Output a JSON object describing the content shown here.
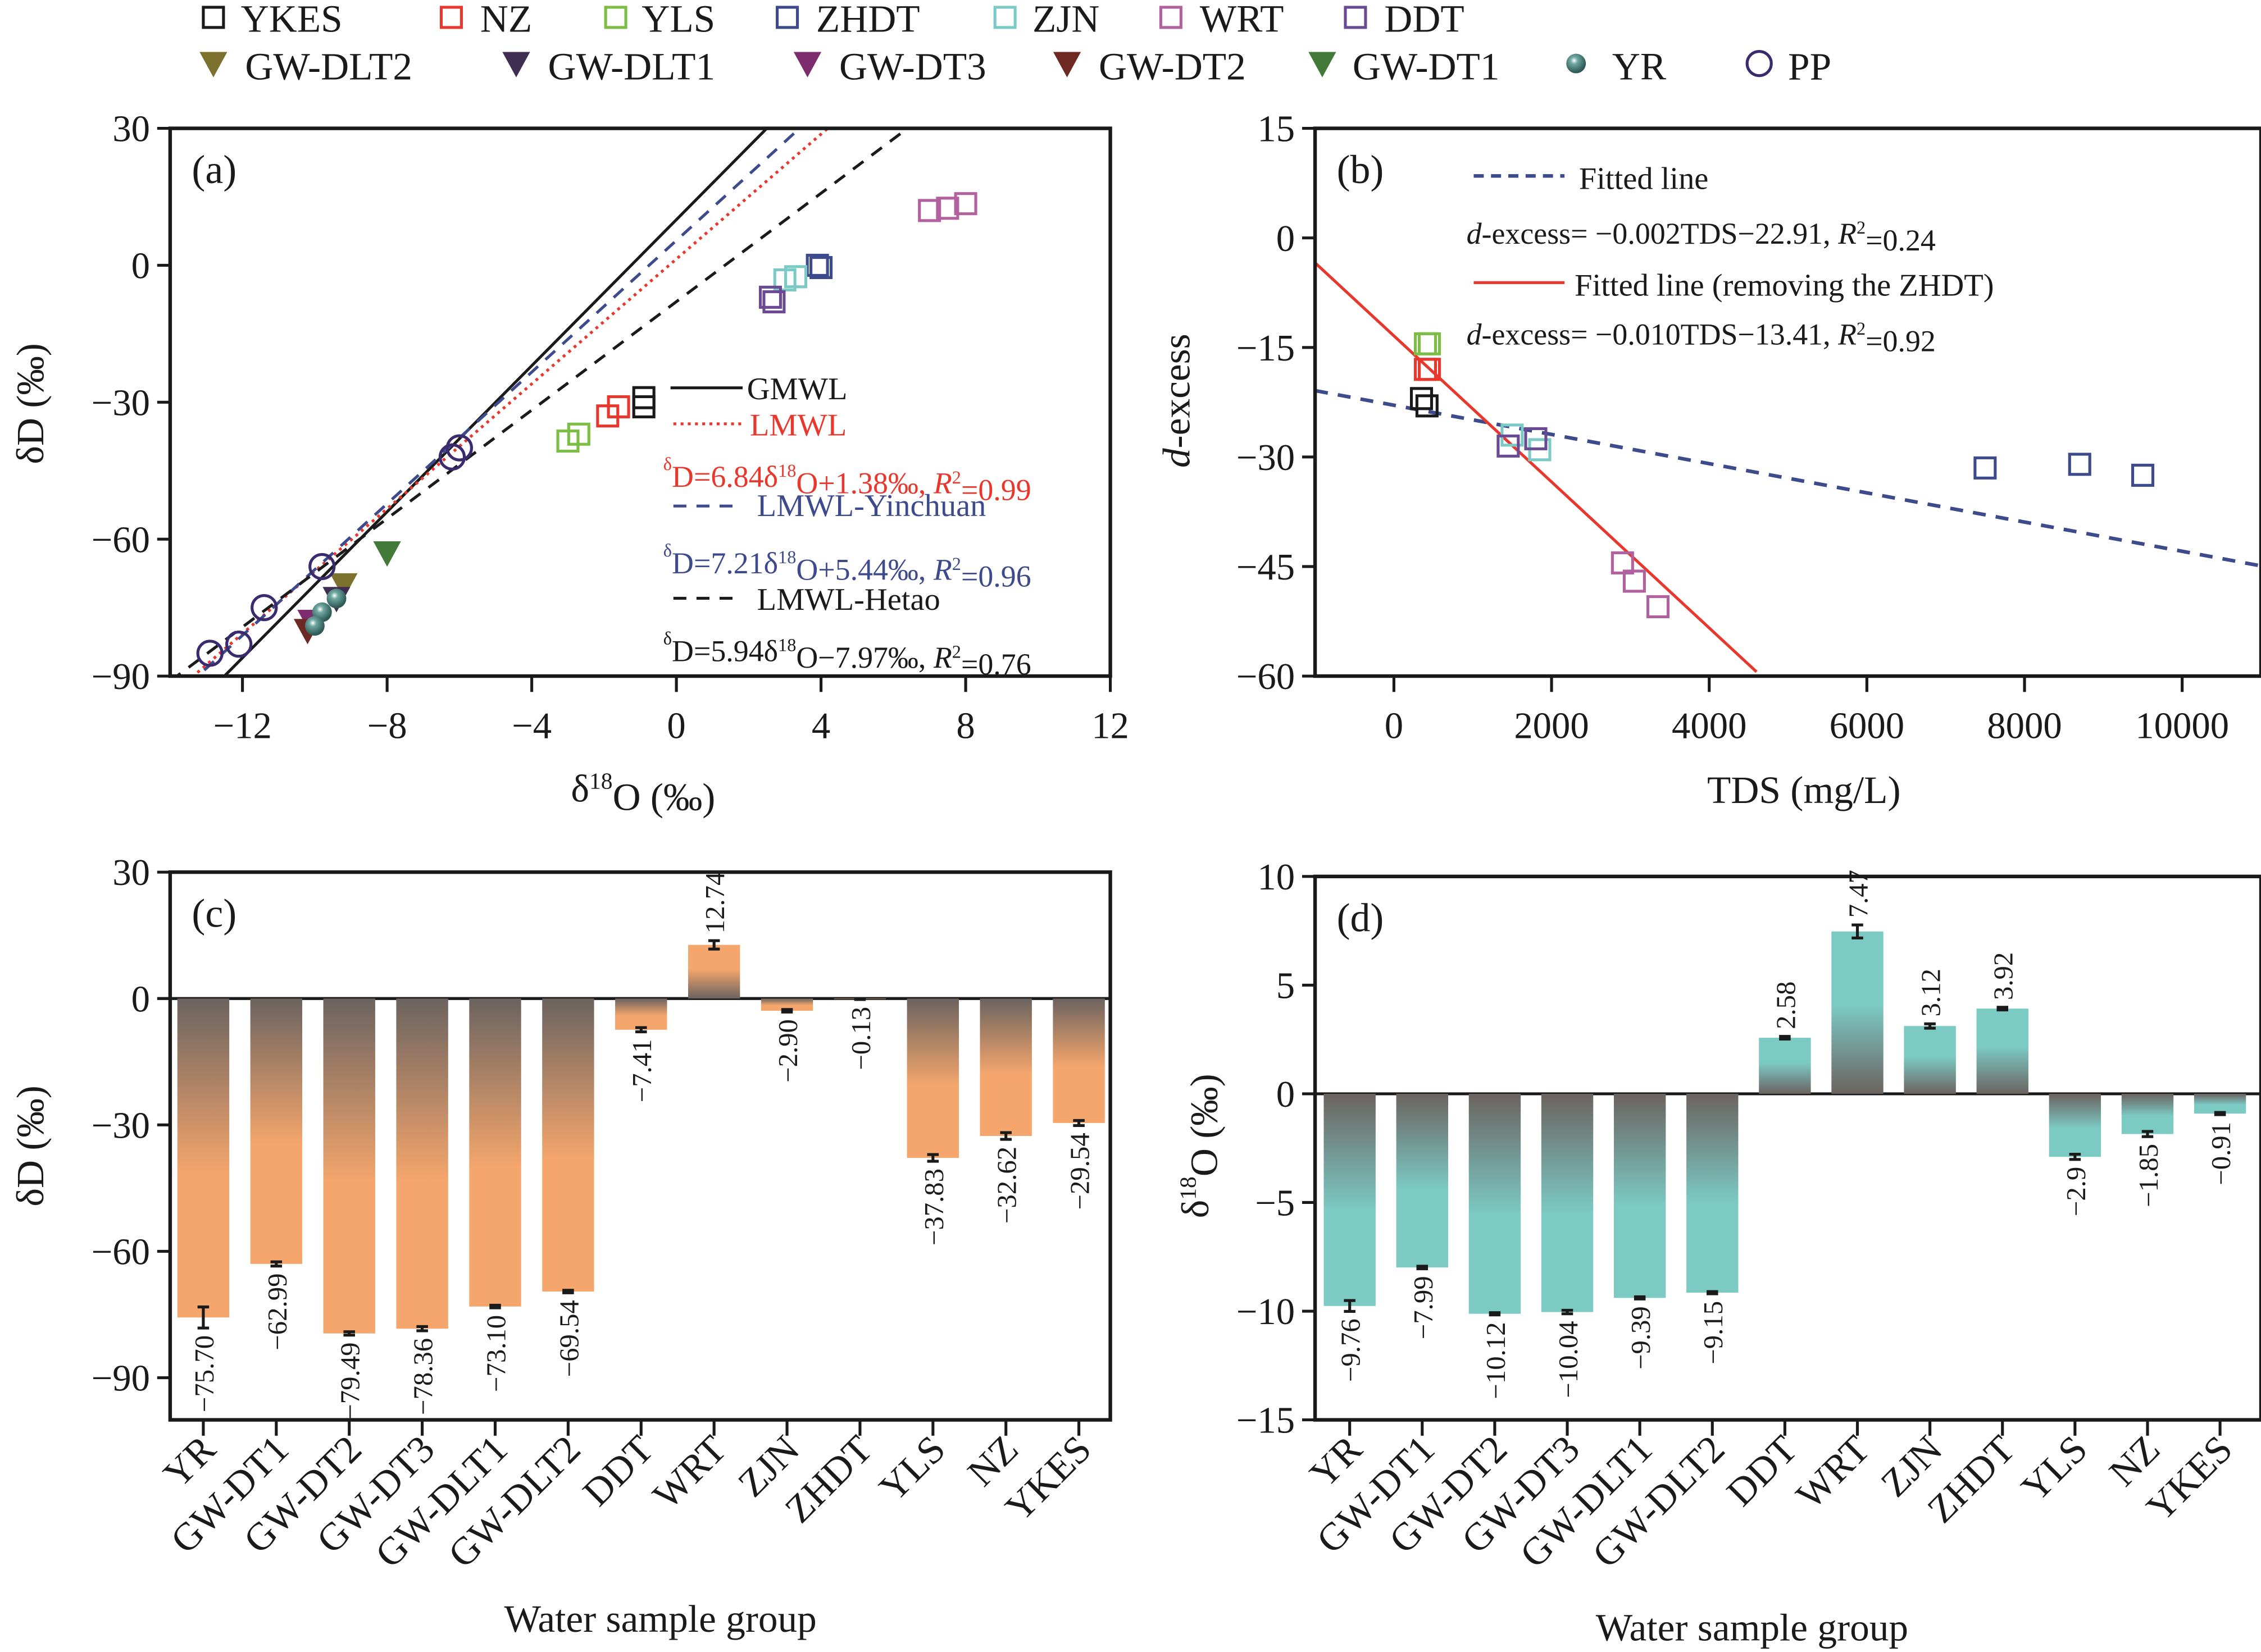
{
  "legend": {
    "row1": [
      {
        "label": "YKES",
        "marker": "square",
        "color": "#1a1a1a"
      },
      {
        "label": "NZ",
        "marker": "square",
        "color": "#e8382e"
      },
      {
        "label": "YLS",
        "marker": "square",
        "color": "#7cbd45"
      },
      {
        "label": "ZHDT",
        "marker": "square",
        "color": "#3d4a8c"
      },
      {
        "label": "ZJN",
        "marker": "square",
        "color": "#7ccac6"
      },
      {
        "label": "WRT",
        "marker": "square",
        "color": "#b0619e"
      },
      {
        "label": "DDT",
        "marker": "square",
        "color": "#6a4a93"
      }
    ],
    "row2": [
      {
        "label": "GW-DLT2",
        "marker": "triangle-down",
        "color": "#7d7130"
      },
      {
        "label": "GW-DLT1",
        "marker": "triangle-down",
        "color": "#3f2e52"
      },
      {
        "label": "GW-DT3",
        "marker": "triangle-down",
        "color": "#7d2d6e"
      },
      {
        "label": "GW-DT2",
        "marker": "triangle-down",
        "color": "#6e2a22"
      },
      {
        "label": "GW-DT1",
        "marker": "triangle-down",
        "color": "#437a3a"
      },
      {
        "label": "YR",
        "marker": "ball",
        "color": "#4e7f7a"
      },
      {
        "label": "PP",
        "marker": "circle",
        "color": "#3a2a6e"
      }
    ]
  },
  "chart_data": [
    {
      "panel": "(a)",
      "type": "scatter",
      "xlabel": {
        "pre": "δ",
        "sup": "18",
        "post": "O (‰)"
      },
      "ylabel": "δD (‰)",
      "xlim": [
        -14,
        12
      ],
      "ylim": [
        -90,
        30
      ],
      "xticks": [
        -12,
        -8,
        -4,
        0,
        4,
        8,
        12
      ],
      "xtick_labels": [
        "−12",
        "−8",
        "−4",
        "0",
        "4",
        "8",
        "12"
      ],
      "yticks": [
        30,
        0,
        -30,
        -60,
        -90
      ],
      "ytick_labels": [
        "30",
        "0",
        "−30",
        "−60",
        "−90"
      ],
      "series": [
        {
          "group": "WRT",
          "points": [
            [
              7.0,
              12
            ],
            [
              7.5,
              12.5
            ],
            [
              8.0,
              13.5
            ]
          ]
        },
        {
          "group": "ZHDT",
          "points": [
            [
              3.9,
              0
            ],
            [
              4.0,
              -0.5
            ]
          ]
        },
        {
          "group": "ZJN",
          "points": [
            [
              3.0,
              -3.2
            ],
            [
              3.3,
              -2.5
            ]
          ]
        },
        {
          "group": "DDT",
          "points": [
            [
              2.6,
              -7
            ],
            [
              2.7,
              -8
            ]
          ]
        },
        {
          "group": "YKES",
          "points": [
            [
              -0.9,
              -29
            ],
            [
              -0.9,
              -31
            ]
          ]
        },
        {
          "group": "NZ",
          "points": [
            [
              -1.9,
              -33
            ],
            [
              -1.6,
              -31
            ]
          ]
        },
        {
          "group": "YLS",
          "points": [
            [
              -3.0,
              -38.5
            ],
            [
              -2.7,
              -37
            ]
          ]
        },
        {
          "group": "GW-DT1",
          "points": [
            [
              -8.0,
              -63
            ]
          ]
        },
        {
          "group": "GW-DLT2",
          "points": [
            [
              -9.2,
              -70
            ]
          ]
        },
        {
          "group": "GW-DLT1",
          "points": [
            [
              -9.4,
              -73
            ]
          ]
        },
        {
          "group": "GW-DT3",
          "points": [
            [
              -10.1,
              -78
            ]
          ]
        },
        {
          "group": "GW-DT2",
          "points": [
            [
              -10.2,
              -80
            ]
          ]
        },
        {
          "group": "YR",
          "points": [
            [
              -9.4,
              -73
            ],
            [
              -9.8,
              -76
            ],
            [
              -10.0,
              -79
            ]
          ]
        },
        {
          "group": "PP",
          "points": [
            [
              -6.0,
              -40
            ],
            [
              -6.2,
              -42
            ],
            [
              -9.8,
              -66
            ],
            [
              -11.4,
              -75
            ],
            [
              -12.1,
              -83
            ],
            [
              -12.9,
              -85
            ]
          ]
        }
      ],
      "lines": [
        {
          "name": "GMWL",
          "slope": 8,
          "intercept": 10,
          "style": "solid",
          "color": "#1a1a1a"
        },
        {
          "name": "LMWL",
          "slope": 6.84,
          "intercept": 1.38,
          "style": "dotted",
          "color": "#e8382e",
          "equation": [
            {
              "t": "δ",
              "sup": true
            },
            {
              "t": "D=6.84δ"
            },
            {
              "t": "18",
              "sup": true
            },
            {
              "t": "O+1.38‰, "
            },
            {
              "t": "R",
              "it": true
            },
            {
              "t": "2",
              "sup": true
            },
            {
              "t": "=0.99"
            }
          ]
        },
        {
          "name": "LMWL-Yinchuan",
          "slope": 7.21,
          "intercept": 5.44,
          "style": "dashed",
          "color": "#3d4a8c",
          "equation": [
            {
              "t": "δ",
              "sup": true
            },
            {
              "t": "D=7.21δ"
            },
            {
              "t": "18",
              "sup": true
            },
            {
              "t": "O+5.44‰, "
            },
            {
              "t": "R",
              "it": true
            },
            {
              "t": "2",
              "sup": true
            },
            {
              "t": "=0.96"
            }
          ]
        },
        {
          "name": "LMWL-Hetao",
          "slope": 5.94,
          "intercept": -7.97,
          "style": "dashed",
          "color": "#1a1a1a",
          "equation": [
            {
              "t": "δ",
              "sup": true
            },
            {
              "t": "D=5.94δ"
            },
            {
              "t": "18",
              "sup": true
            },
            {
              "t": "O−7.97‰, "
            },
            {
              "t": "R",
              "it": true
            },
            {
              "t": "2",
              "sup": true
            },
            {
              "t": "=0.76"
            }
          ]
        }
      ]
    },
    {
      "panel": "(b)",
      "type": "scatter",
      "xlabel": "TDS (mg/L)",
      "ylabel": {
        "it": "d",
        "post": "-excess"
      },
      "xlim": [
        -1000,
        11000
      ],
      "ylim": [
        -60,
        15
      ],
      "xticks": [
        0,
        2000,
        4000,
        6000,
        8000,
        10000
      ],
      "xtick_labels": [
        "0",
        "2000",
        "4000",
        "6000",
        "8000",
        "10000"
      ],
      "yticks": [
        15,
        0,
        -15,
        -30,
        -45,
        -60
      ],
      "ytick_labels": [
        "15",
        "0",
        "−15",
        "−30",
        "−45",
        "−60"
      ],
      "series": [
        {
          "group": "YLS",
          "points": [
            [
              400,
              -14.5
            ],
            [
              450,
              -14.5
            ]
          ]
        },
        {
          "group": "NZ",
          "points": [
            [
              400,
              -18
            ],
            [
              450,
              -18
            ]
          ]
        },
        {
          "group": "YKES",
          "points": [
            [
              350,
              -22
            ],
            [
              420,
              -23
            ]
          ]
        },
        {
          "group": "ZJN",
          "points": [
            [
              1500,
              -27
            ],
            [
              1850,
              -29
            ]
          ]
        },
        {
          "group": "DDT",
          "points": [
            [
              1450,
              -28.5
            ],
            [
              1800,
              -27.5
            ]
          ]
        },
        {
          "group": "WRT",
          "points": [
            [
              2900,
              -44.5
            ],
            [
              3050,
              -47
            ],
            [
              3350,
              -50.5
            ]
          ]
        },
        {
          "group": "ZHDT",
          "points": [
            [
              7500,
              -31.5
            ],
            [
              8700,
              -31
            ],
            [
              9500,
              -32.5
            ]
          ]
        }
      ],
      "lines": [
        {
          "name": "Fitted line",
          "slope": -0.002,
          "intercept": -22.91,
          "style": "dashed",
          "color": "#3d4a8c",
          "xrange": [
            -1000,
            11000
          ],
          "equation": [
            {
              "t": "d",
              "it": true
            },
            {
              "t": "-excess= −0.002TDS−22.91, "
            },
            {
              "t": "R",
              "it": true
            },
            {
              "t": "2",
              "sup": true
            },
            {
              "t": "=0.24"
            }
          ]
        },
        {
          "name": "Fitted line (removing the ZHDT)",
          "slope": -0.01,
          "intercept": -13.41,
          "style": "solid",
          "color": "#e8382e",
          "xrange": [
            -1000,
            4600
          ],
          "equation": [
            {
              "t": "d",
              "it": true
            },
            {
              "t": "-excess= −0.010TDS−13.41, "
            },
            {
              "t": "R",
              "it": true
            },
            {
              "t": "2",
              "sup": true
            },
            {
              "t": "=0.92"
            }
          ]
        }
      ]
    },
    {
      "panel": "(c)",
      "type": "bar",
      "xlabel": "Water sample group",
      "ylabel": "δD (‰)",
      "ylim": [
        -100,
        30
      ],
      "yticks": [
        30,
        0,
        -30,
        -60,
        -90
      ],
      "ytick_labels": [
        "30",
        "0",
        "−30",
        "−60",
        "−90"
      ],
      "categories": [
        "YR",
        "GW-DT1",
        "GW-DT2",
        "GW-DT3",
        "GW-DLT1",
        "GW-DLT2",
        "DDT",
        "WRT",
        "ZJN",
        "ZHDT",
        "YLS",
        "NZ",
        "YKES"
      ],
      "values": [
        -75.7,
        -62.99,
        -79.49,
        -78.36,
        -73.1,
        -69.54,
        -7.41,
        12.74,
        -2.9,
        -0.13,
        -37.83,
        -32.62,
        -29.54
      ],
      "value_labels": [
        "−75.70",
        "−62.99",
        "−79.49",
        "−78.36",
        "−73.10",
        "−69.54",
        "−7.41",
        "12.74",
        "−2.90",
        "−0.13",
        "−37.83",
        "−32.62",
        "−29.54"
      ],
      "errors": [
        2.5,
        0.5,
        0.4,
        0.5,
        0.3,
        0.3,
        0.5,
        1.0,
        0.3,
        0.1,
        0.8,
        0.8,
        0.6
      ],
      "colors": {
        "base": "#6b6360",
        "tip": "#f5a66c"
      }
    },
    {
      "panel": "(d)",
      "type": "bar",
      "xlabel": "Water sample group",
      "ylabel": {
        "pre": "δ",
        "sup": "18",
        "post": "O (‰)"
      },
      "ylim": [
        -15,
        10
      ],
      "yticks": [
        10,
        5,
        0,
        -5,
        -10,
        -15
      ],
      "ytick_labels": [
        "10",
        "5",
        "0",
        "−5",
        "−10",
        "−15"
      ],
      "categories": [
        "YR",
        "GW-DT1",
        "GW-DT2",
        "GW-DT3",
        "GW-DLT1",
        "GW-DLT2",
        "DDT",
        "WRT",
        "ZJN",
        "ZHDT",
        "YLS",
        "NZ",
        "YKES"
      ],
      "values": [
        -9.76,
        -7.99,
        -10.12,
        -10.04,
        -9.39,
        -9.15,
        2.58,
        7.47,
        3.12,
        3.92,
        -2.9,
        -1.85,
        -0.91
      ],
      "value_labels": [
        "−9.76",
        "−7.99",
        "−10.12",
        "−10.04",
        "−9.39",
        "−9.15",
        "2.58",
        "7.47",
        "3.12",
        "3.92",
        "−2.9",
        "−1.85",
        "−0.91"
      ],
      "errors": [
        0.25,
        0.06,
        0.05,
        0.08,
        0.05,
        0.05,
        0.06,
        0.3,
        0.1,
        0.06,
        0.12,
        0.12,
        0.05
      ],
      "colors": {
        "base": "#6b6360",
        "tip": "#7ccac4"
      }
    }
  ]
}
